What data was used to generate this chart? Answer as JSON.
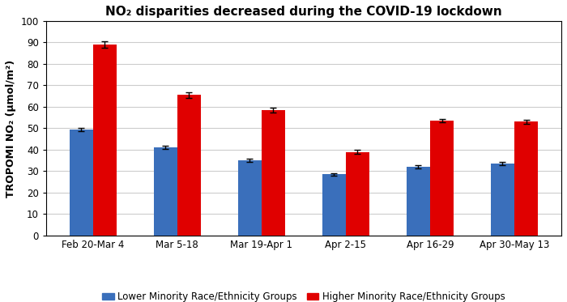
{
  "title": "NO₂ disparities decreased during the COVID-19 lockdown",
  "ylabel": "TROPOMI NO₂ (μmol/m²)",
  "categories": [
    "Feb 20-Mar 4",
    "Mar 5-18",
    "Mar 19-Apr 1",
    "Apr 2-15",
    "Apr 16-29",
    "Apr 30-May 13"
  ],
  "lower_values": [
    49.5,
    41.0,
    35.0,
    28.5,
    32.0,
    33.5
  ],
  "higher_values": [
    89.0,
    65.5,
    58.5,
    39.0,
    53.5,
    53.0
  ],
  "lower_errors": [
    0.8,
    0.8,
    0.8,
    0.7,
    0.7,
    0.7
  ],
  "higher_errors": [
    1.5,
    1.2,
    1.0,
    0.8,
    0.8,
    0.8
  ],
  "lower_color": "#3a6fbb",
  "higher_color": "#e00000",
  "lower_label": "Lower Minority Race/Ethnicity Groups",
  "higher_label": "Higher Minority Race/Ethnicity Groups",
  "ylim": [
    0,
    100
  ],
  "yticks": [
    0,
    10,
    20,
    30,
    40,
    50,
    60,
    70,
    80,
    90,
    100
  ],
  "bar_width": 0.28,
  "background_color": "#ffffff",
  "grid_color": "#cccccc",
  "title_fontsize": 11,
  "label_fontsize": 9,
  "tick_fontsize": 8.5,
  "legend_fontsize": 8.5
}
